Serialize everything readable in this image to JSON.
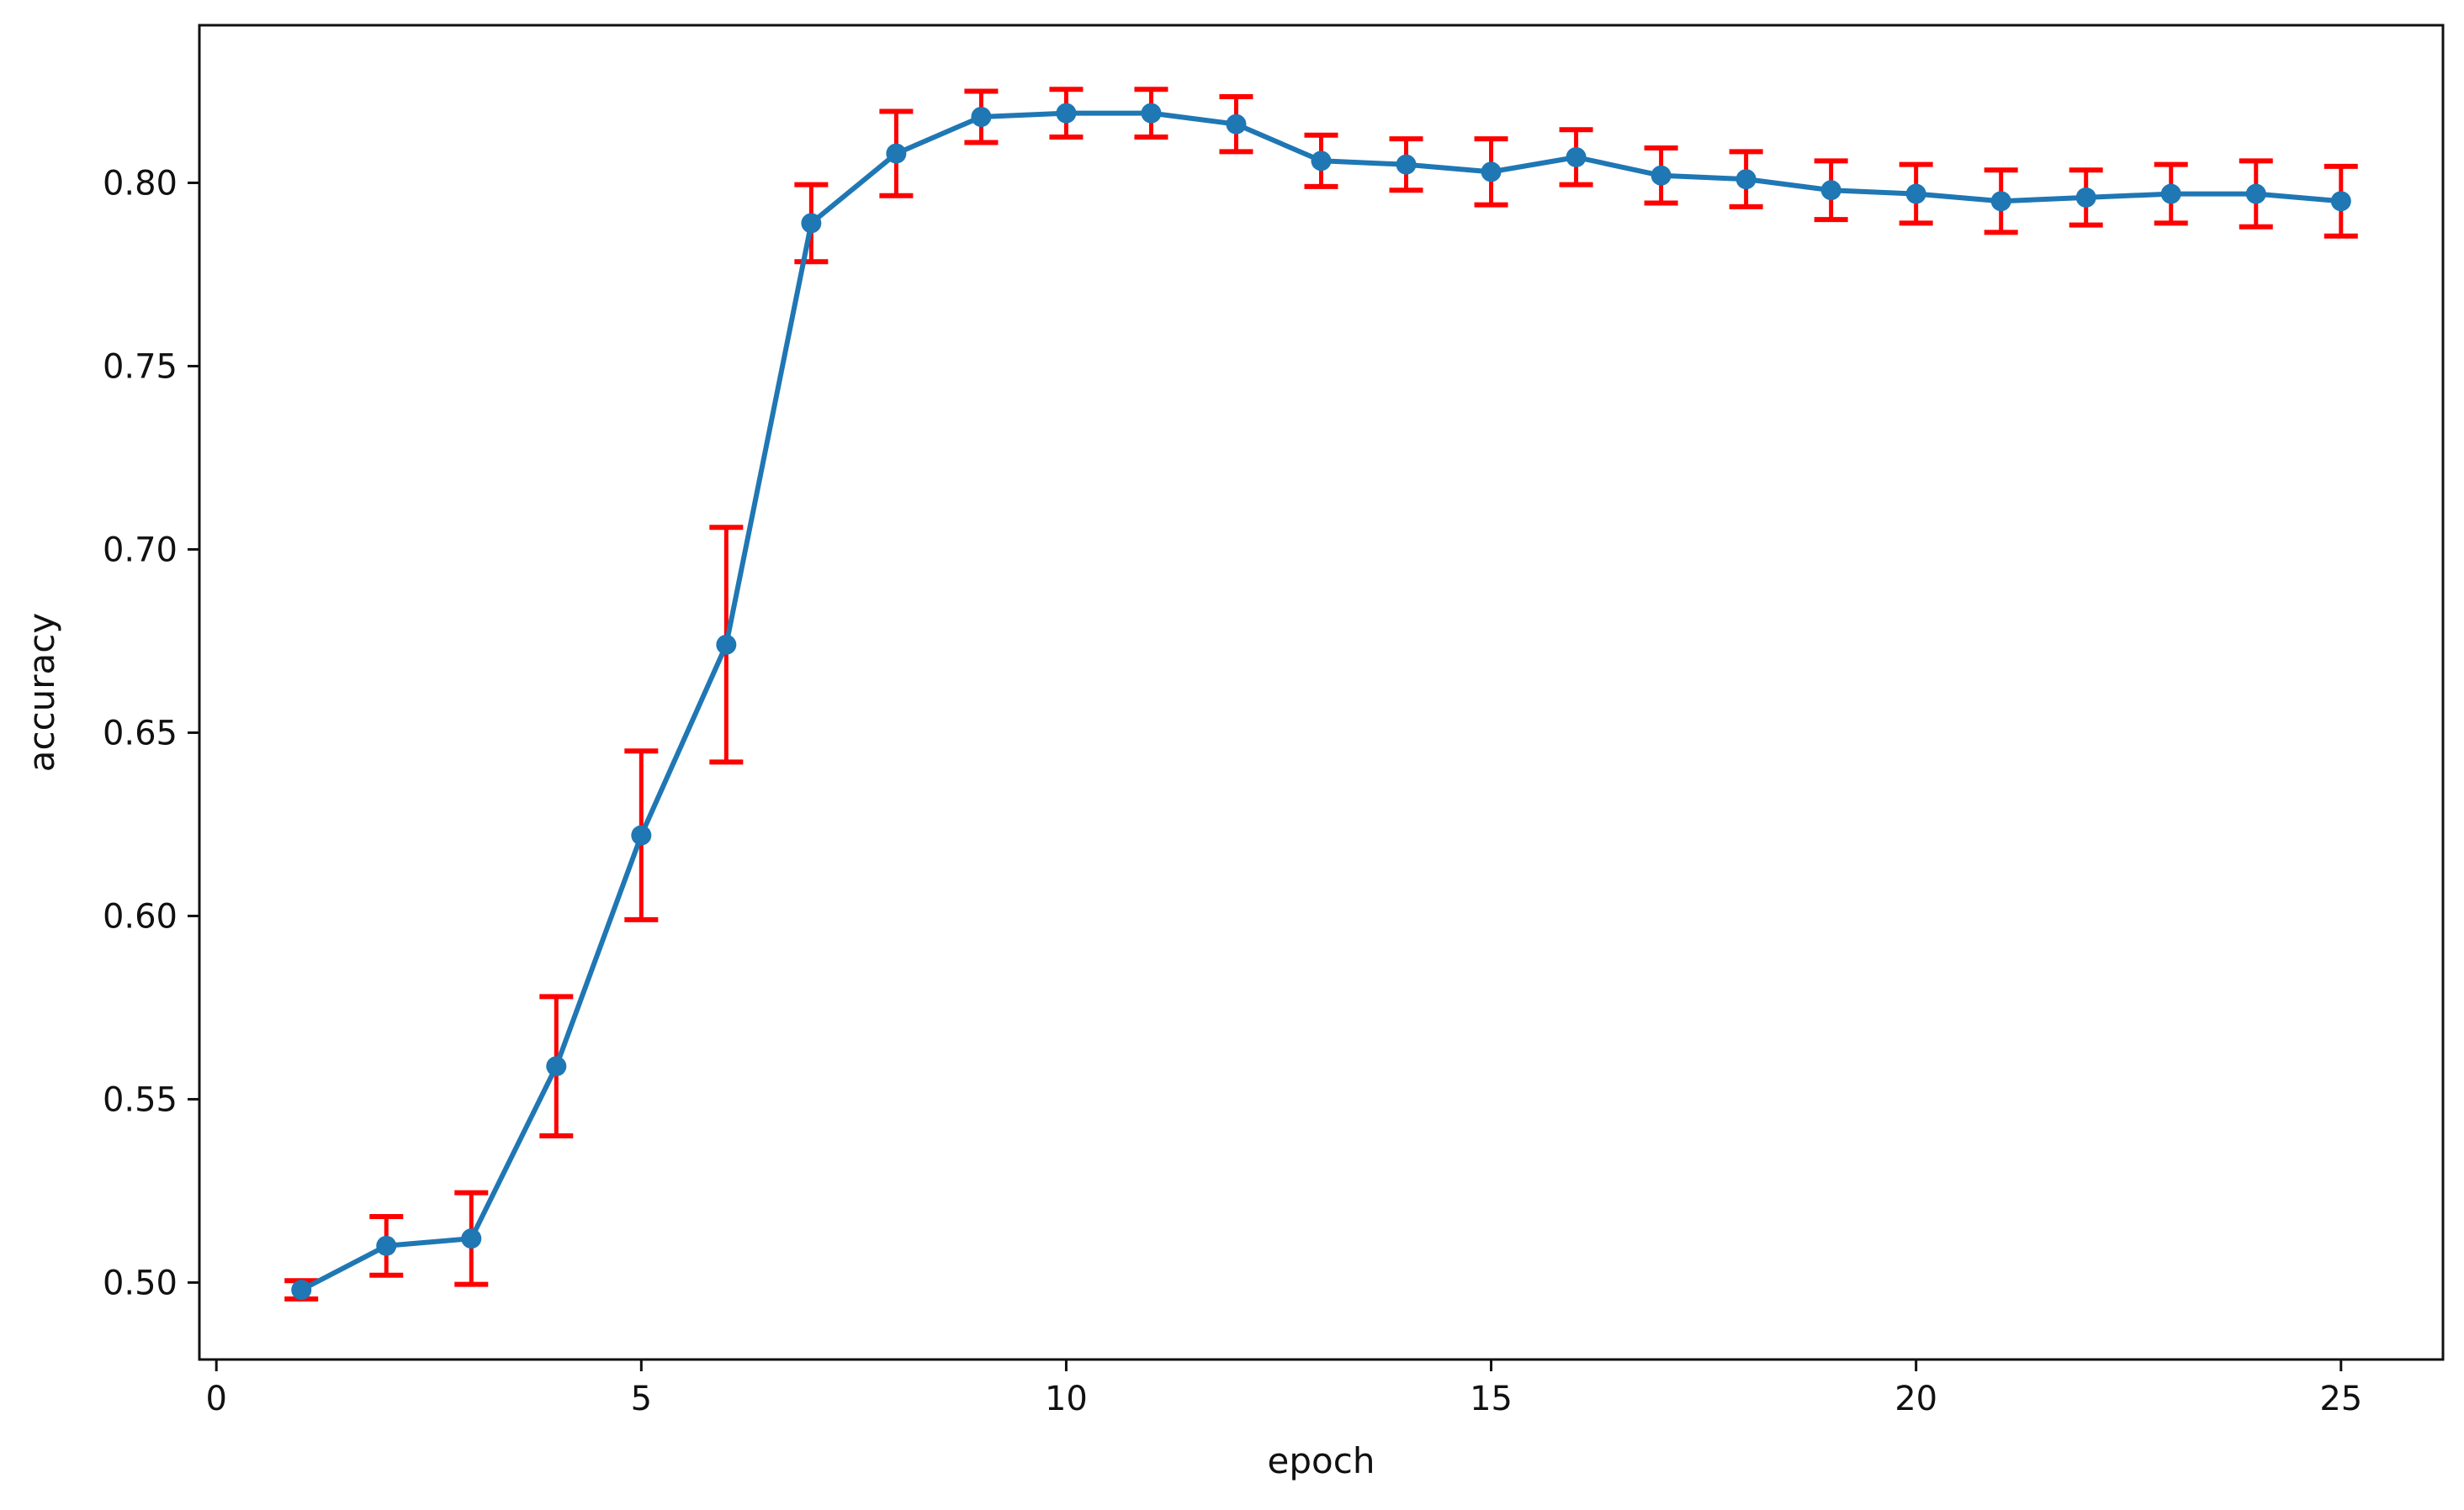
{
  "chart_data": {
    "type": "line",
    "title": "",
    "xlabel": "epoch",
    "ylabel": "accuracy",
    "xlim": [
      -0.2,
      26.2
    ],
    "ylim": [
      0.479,
      0.843
    ],
    "xticks": [
      0,
      5,
      10,
      15,
      20,
      25
    ],
    "xtick_labels": [
      "0",
      "5",
      "10",
      "15",
      "20",
      "25"
    ],
    "yticks": [
      0.5,
      0.55,
      0.6,
      0.65,
      0.7,
      0.75,
      0.8
    ],
    "ytick_labels": [
      "0.50",
      "0.55",
      "0.60",
      "0.65",
      "0.70",
      "0.75",
      "0.80"
    ],
    "grid": false,
    "line_color": "#1f77b4",
    "errorbar_color": "#ff0000",
    "series": [
      {
        "x": [
          1,
          2,
          3,
          4,
          5,
          6,
          7,
          8,
          9,
          10,
          11,
          12,
          13,
          14,
          15,
          16,
          17,
          18,
          19,
          20,
          21,
          22,
          23,
          24,
          25
        ],
        "y": [
          0.498,
          0.51,
          0.512,
          0.559,
          0.622,
          0.674,
          0.789,
          0.808,
          0.818,
          0.819,
          0.819,
          0.816,
          0.806,
          0.805,
          0.803,
          0.807,
          0.802,
          0.801,
          0.798,
          0.797,
          0.795,
          0.796,
          0.797,
          0.797,
          0.795
        ],
        "error": [
          0.0025,
          0.008,
          0.0125,
          0.019,
          0.023,
          0.032,
          0.0105,
          0.0115,
          0.007,
          0.0065,
          0.0065,
          0.0075,
          0.007,
          0.007,
          0.009,
          0.0075,
          0.0075,
          0.0075,
          0.008,
          0.008,
          0.0085,
          0.0075,
          0.008,
          0.009,
          0.0095
        ]
      }
    ]
  }
}
